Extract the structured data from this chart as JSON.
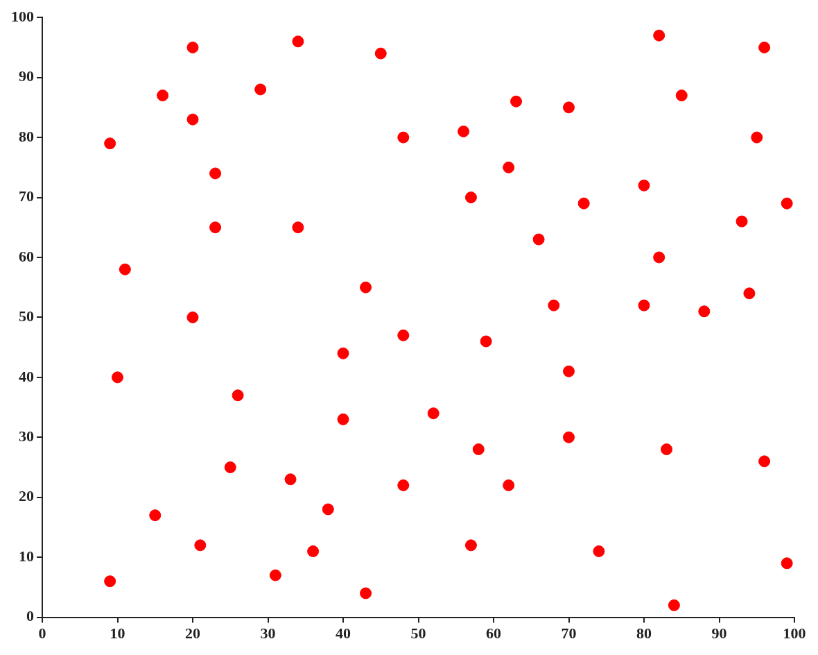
{
  "chart_data": {
    "type": "scatter",
    "marker": "circle",
    "grid": false,
    "legend": false,
    "xlim": [
      0,
      100
    ],
    "xticks": [
      0,
      10,
      20,
      30,
      40,
      50,
      60,
      70,
      80,
      90,
      100
    ],
    "ylim": [
      0,
      100
    ],
    "yticks": [
      0,
      10,
      20,
      30,
      40,
      50,
      60,
      70,
      80,
      90,
      100
    ],
    "series": [
      {
        "color": "#ff0000",
        "x": [
          9,
          9,
          10,
          11,
          15,
          16,
          20,
          20,
          20,
          21,
          23,
          23,
          25,
          26,
          29,
          31,
          33,
          34,
          34,
          36,
          38,
          40,
          40,
          43,
          43,
          45,
          48,
          48,
          48,
          52,
          56,
          57,
          57,
          58,
          59,
          62,
          62,
          63,
          66,
          68,
          70,
          70,
          70,
          72,
          74,
          80,
          80,
          82,
          82,
          83,
          84,
          85,
          88,
          93,
          94,
          95,
          96,
          96,
          99,
          99
        ],
        "values": [
          6,
          79,
          40,
          58,
          17,
          87,
          95,
          83,
          50,
          12,
          74,
          65,
          25,
          37,
          88,
          7,
          23,
          96,
          65,
          11,
          18,
          44,
          33,
          55,
          4,
          94,
          80,
          47,
          22,
          34,
          81,
          70,
          12,
          28,
          46,
          75,
          22,
          86,
          63,
          52,
          85,
          41,
          30,
          69,
          11,
          72,
          52,
          97,
          60,
          28,
          2,
          87,
          51,
          66,
          54,
          80,
          95,
          26,
          69,
          9
        ]
      }
    ]
  }
}
